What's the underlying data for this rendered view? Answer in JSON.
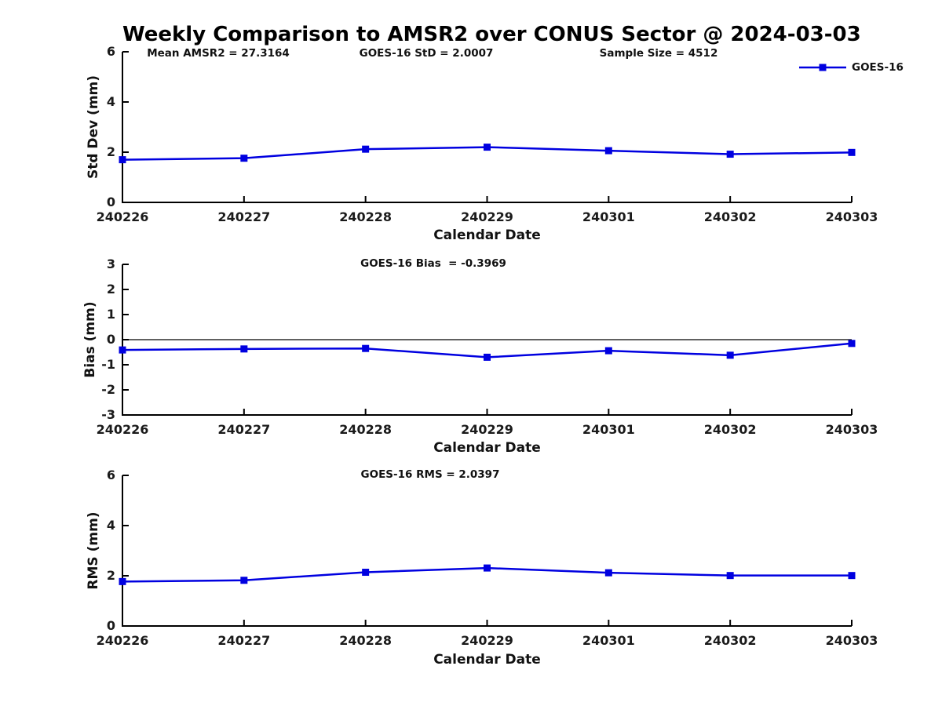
{
  "title": "Weekly Comparison to AMSR2 over CONUS Sector @ 2024-03-03",
  "colors": {
    "line": "#0000e0",
    "axis": "#000000",
    "text": "#111111",
    "background": "#ffffff"
  },
  "legend": {
    "label": "GOES-16",
    "marker": "filled-square",
    "position": "top-right-outside"
  },
  "chart_data": [
    {
      "type": "line",
      "panel": "std-dev",
      "annotations": [
        "Mean AMSR2 = 27.3164",
        "GOES-16 StD = 2.0007",
        "Sample Size = 4512"
      ],
      "x": [
        "240226",
        "240227",
        "240228",
        "240229",
        "240301",
        "240302",
        "240303"
      ],
      "series": [
        {
          "name": "GOES-16",
          "values": [
            1.7,
            1.76,
            2.12,
            2.2,
            2.06,
            1.92,
            1.99
          ]
        }
      ],
      "xlabel": "Calendar Date",
      "ylabel": "Std Dev (mm)",
      "ylim": [
        0,
        6
      ],
      "yticks": [
        0,
        2,
        4,
        6
      ],
      "grid": false,
      "zero_line": false
    },
    {
      "type": "line",
      "panel": "bias",
      "annotation": "GOES-16 Bias  = -0.3969",
      "x": [
        "240226",
        "240227",
        "240228",
        "240229",
        "240301",
        "240302",
        "240303"
      ],
      "series": [
        {
          "name": "GOES-16",
          "values": [
            -0.41,
            -0.37,
            -0.35,
            -0.7,
            -0.44,
            -0.62,
            -0.15
          ]
        }
      ],
      "xlabel": "Calendar Date",
      "ylabel": "Bias (mm)",
      "ylim": [
        -3,
        3
      ],
      "yticks": [
        3,
        2,
        1,
        0,
        -1,
        -2,
        -3
      ],
      "grid": false,
      "zero_line": true
    },
    {
      "type": "line",
      "panel": "rms",
      "annotation": "GOES-16 RMS = 2.0397",
      "x": [
        "240226",
        "240227",
        "240228",
        "240229",
        "240301",
        "240302",
        "240303"
      ],
      "series": [
        {
          "name": "GOES-16",
          "values": [
            1.77,
            1.82,
            2.14,
            2.31,
            2.12,
            2.01,
            2.01
          ]
        }
      ],
      "xlabel": "Calendar Date",
      "ylabel": "RMS (mm)",
      "ylim": [
        0,
        6
      ],
      "yticks": [
        0,
        2,
        4,
        6
      ],
      "grid": false,
      "zero_line": false
    }
  ]
}
